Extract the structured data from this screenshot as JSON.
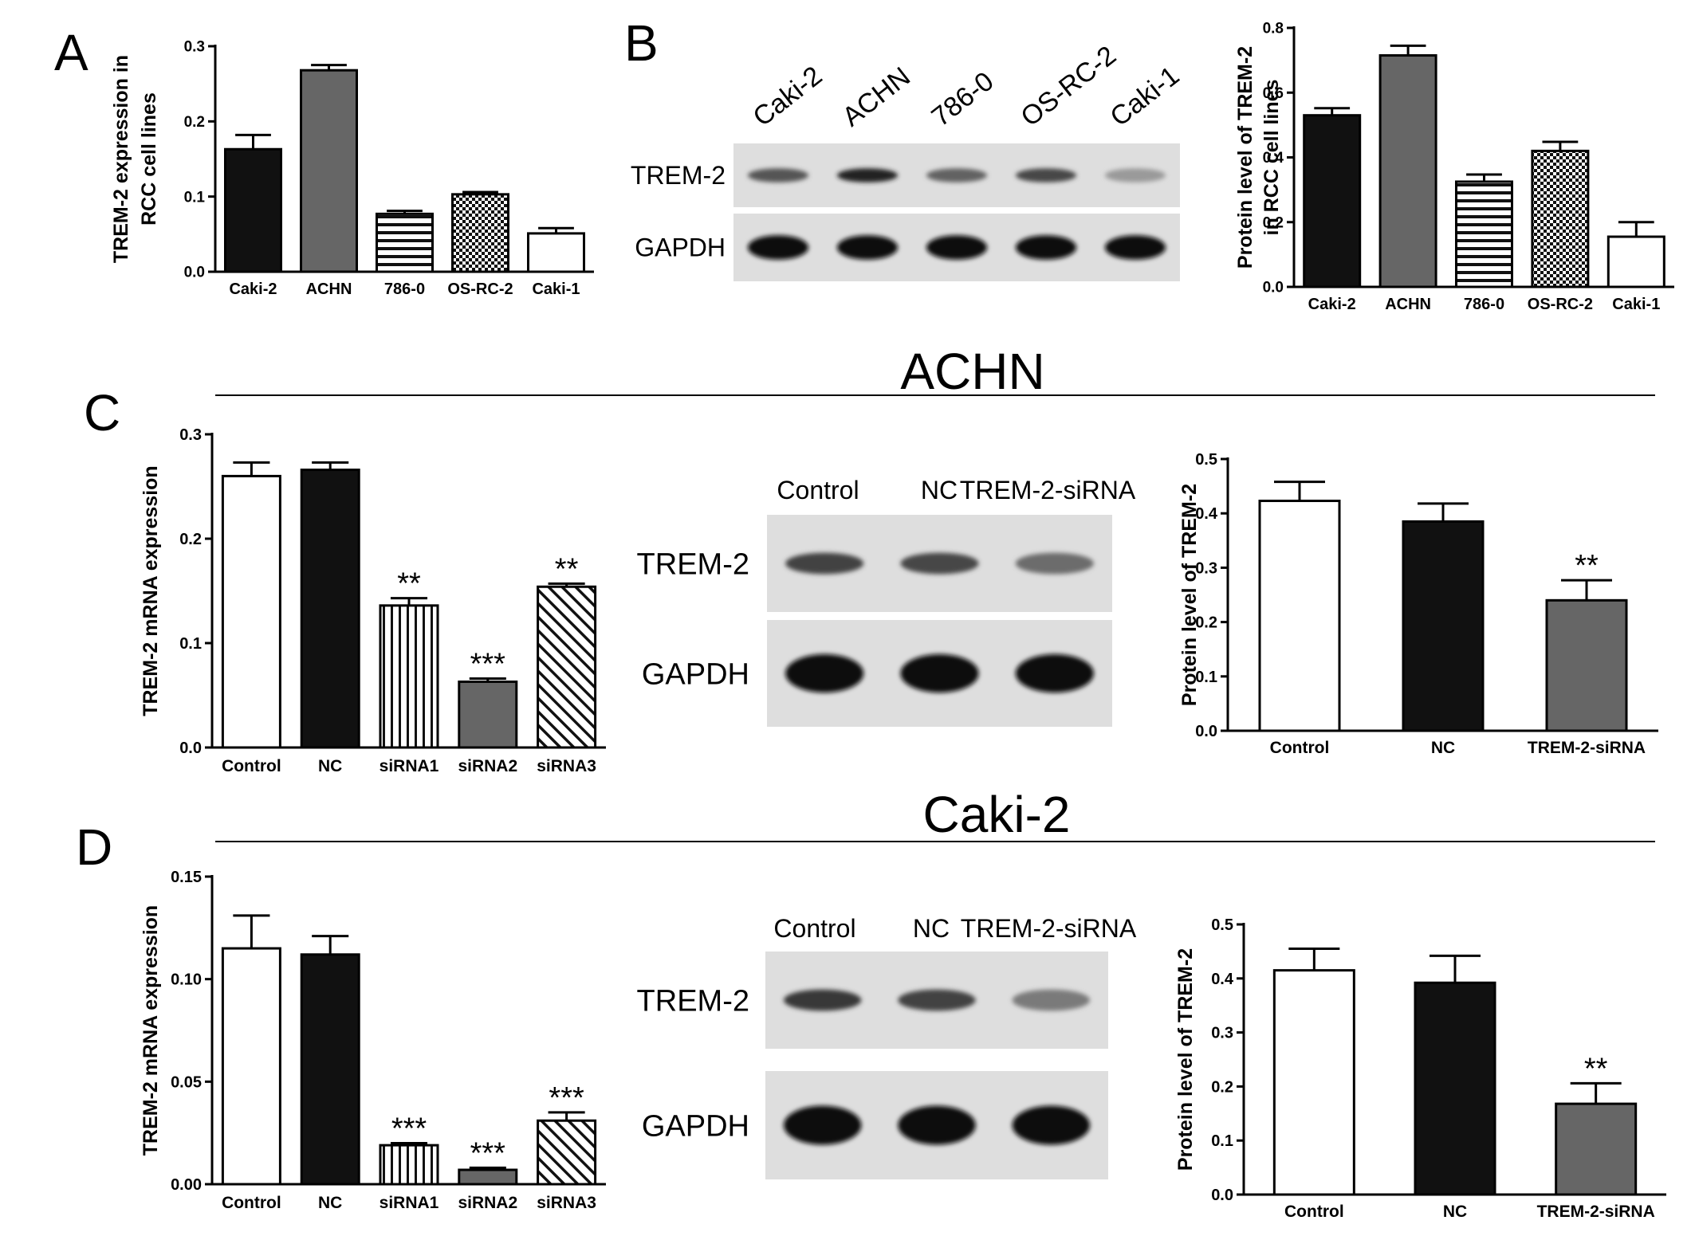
{
  "panel_letters": {
    "a": "A",
    "b": "B",
    "c": "C",
    "d": "D"
  },
  "section_titles": {
    "achn": "ACHN",
    "caki2": "Caki-2"
  },
  "blot_b": {
    "lanes": [
      "Caki-2",
      "ACHN",
      "786-0",
      "OS-RC-2",
      "Caki-1"
    ],
    "row_labels": [
      "TREM-2",
      "GAPDH"
    ],
    "trem2_intensity": [
      0.62,
      0.9,
      0.55,
      0.7,
      0.25
    ]
  },
  "blot_c": {
    "lanes": [
      "Control",
      "NC",
      "TREM-2-siRNA"
    ],
    "row_labels": [
      "TREM-2",
      "GAPDH"
    ],
    "trem2_intensity": [
      0.72,
      0.7,
      0.5
    ]
  },
  "blot_d": {
    "lanes": [
      "Control",
      "NC",
      "TREM-2-siRNA"
    ],
    "row_labels": [
      "TREM-2",
      "GAPDH"
    ],
    "trem2_intensity": [
      0.78,
      0.72,
      0.42
    ]
  },
  "colors": {
    "black": "#111111",
    "gray": "#666666",
    "white": "#ffffff",
    "gapdh": "#111111"
  },
  "chart_data": [
    {
      "id": "A",
      "type": "bar",
      "categories": [
        "Caki-2",
        "ACHN",
        "786-0",
        "OS-RC-2",
        "Caki-1"
      ],
      "values": [
        0.163,
        0.268,
        0.077,
        0.103,
        0.051
      ],
      "errors": [
        0.019,
        0.007,
        0.004,
        0.003,
        0.007
      ],
      "fills": [
        "black",
        "gray",
        "hstripe",
        "check",
        "white"
      ],
      "ylabel": [
        "TREM-2 expression in",
        "RCC cell lines"
      ],
      "ylim": [
        0,
        0.3
      ],
      "yticks": [
        0.0,
        0.1,
        0.2,
        0.3
      ],
      "ytick_labels": [
        "0.0",
        "0.1",
        "0.2",
        "0.3"
      ],
      "annotations": [
        "",
        "",
        "",
        "",
        ""
      ]
    },
    {
      "id": "B",
      "type": "bar",
      "categories": [
        "Caki-2",
        "ACHN",
        "786-0",
        "OS-RC-2",
        "Caki-1"
      ],
      "values": [
        0.53,
        0.715,
        0.325,
        0.42,
        0.155
      ],
      "errors": [
        0.022,
        0.03,
        0.022,
        0.028,
        0.045
      ],
      "fills": [
        "black",
        "gray",
        "hstripe",
        "check",
        "white"
      ],
      "ylabel": [
        "Protein level of TREM-2",
        "in RCC cell lines"
      ],
      "ylim": [
        0,
        0.8
      ],
      "yticks": [
        0.0,
        0.2,
        0.4,
        0.6,
        0.8
      ],
      "ytick_labels": [
        "0.0",
        "0.2",
        "0.4",
        "0.6",
        "0.8"
      ],
      "annotations": [
        "",
        "",
        "",
        "",
        ""
      ]
    },
    {
      "id": "C-mRNA",
      "type": "bar",
      "categories": [
        "Control",
        "NC",
        "siRNA1",
        "siRNA2",
        "siRNA3"
      ],
      "values": [
        0.26,
        0.266,
        0.136,
        0.063,
        0.154
      ],
      "errors": [
        0.013,
        0.007,
        0.007,
        0.003,
        0.003
      ],
      "fills": [
        "white",
        "black",
        "vstripe",
        "gray",
        "diag"
      ],
      "ylabel": [
        "TREM-2 mRNA expression"
      ],
      "ylim": [
        0,
        0.3
      ],
      "yticks": [
        0.0,
        0.1,
        0.2,
        0.3
      ],
      "ytick_labels": [
        "0.0",
        "0.1",
        "0.2",
        "0.3"
      ],
      "annotations": [
        "",
        "",
        "**",
        "***",
        "**"
      ]
    },
    {
      "id": "C-protein",
      "type": "bar",
      "categories": [
        "Control",
        "NC",
        "TREM-2-siRNA"
      ],
      "values": [
        0.423,
        0.385,
        0.24
      ],
      "errors": [
        0.035,
        0.033,
        0.037
      ],
      "fills": [
        "white",
        "black",
        "gray"
      ],
      "ylabel": [
        "Protein level of TREM-2"
      ],
      "ylim": [
        0,
        0.5
      ],
      "yticks": [
        0.0,
        0.1,
        0.2,
        0.3,
        0.4,
        0.5
      ],
      "ytick_labels": [
        "0.0",
        "0.1",
        "0.2",
        "0.3",
        "0.4",
        "0.5"
      ],
      "annotations": [
        "",
        "",
        "**"
      ]
    },
    {
      "id": "D-mRNA",
      "type": "bar",
      "categories": [
        "Control",
        "NC",
        "siRNA1",
        "siRNA2",
        "siRNA3"
      ],
      "values": [
        0.115,
        0.112,
        0.019,
        0.007,
        0.031
      ],
      "errors": [
        0.016,
        0.009,
        0.001,
        0.001,
        0.004
      ],
      "fills": [
        "white",
        "black",
        "vstripe",
        "gray",
        "diag"
      ],
      "ylabel": [
        "TREM-2 mRNA expression"
      ],
      "ylim": [
        0,
        0.15
      ],
      "yticks": [
        0.0,
        0.05,
        0.1,
        0.15
      ],
      "ytick_labels": [
        "0.00",
        "0.05",
        "0.10",
        "0.15"
      ],
      "annotations": [
        "",
        "",
        "***",
        "***",
        "***"
      ]
    },
    {
      "id": "D-protein",
      "type": "bar",
      "categories": [
        "Control",
        "NC",
        "TREM-2-siRNA"
      ],
      "values": [
        0.415,
        0.392,
        0.168
      ],
      "errors": [
        0.04,
        0.05,
        0.038
      ],
      "fills": [
        "white",
        "black",
        "gray"
      ],
      "ylabel": [
        "Protein level of TREM-2"
      ],
      "ylim": [
        0,
        0.5
      ],
      "yticks": [
        0.0,
        0.1,
        0.2,
        0.3,
        0.4,
        0.5
      ],
      "ytick_labels": [
        "0.0",
        "0.1",
        "0.2",
        "0.3",
        "0.4",
        "0.5"
      ],
      "annotations": [
        "",
        "",
        "**"
      ]
    }
  ]
}
